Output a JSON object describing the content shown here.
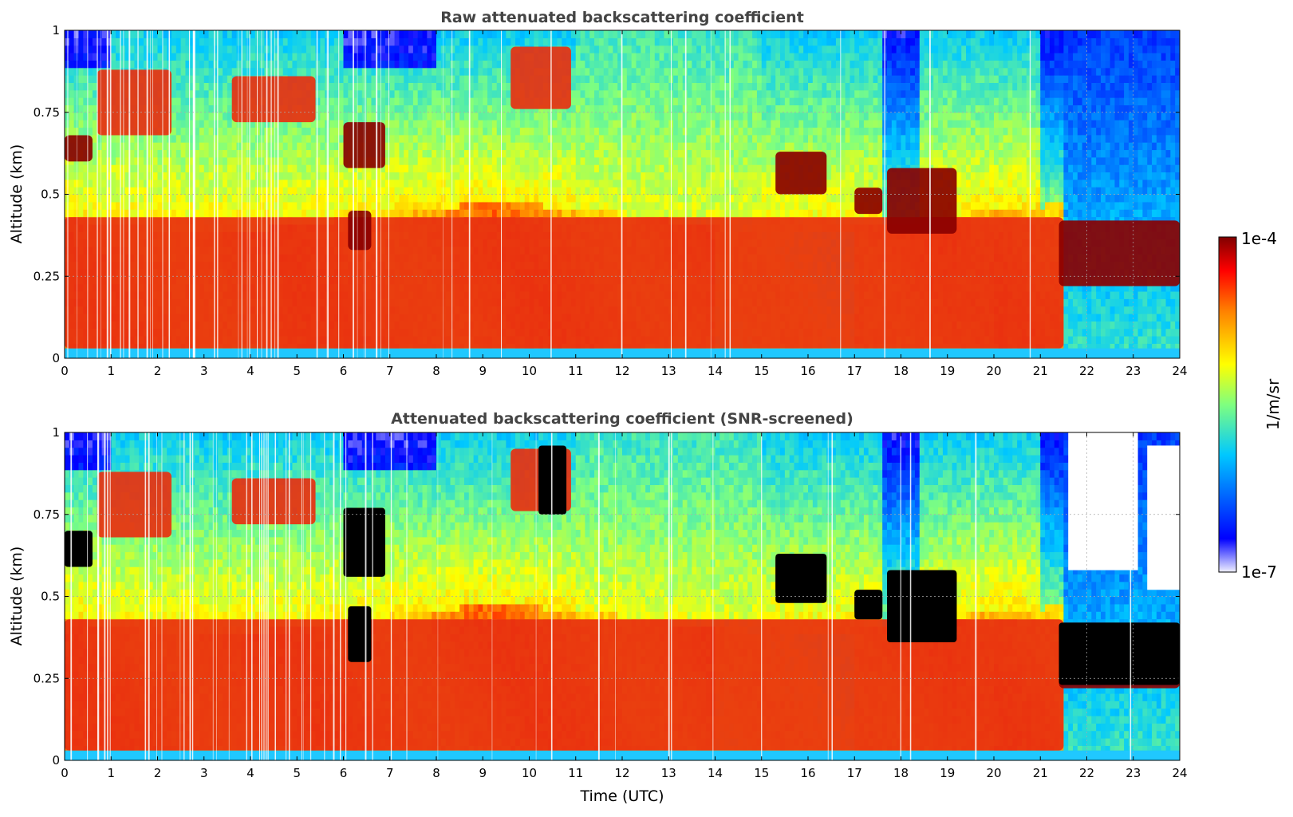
{
  "chart_data": [
    {
      "type": "heatmap",
      "title": "Raw attenuated backscattering coefficient",
      "xlabel": "",
      "ylabel": "Altitude (km)",
      "xlim": [
        0,
        24
      ],
      "ylim": [
        0,
        1
      ],
      "x_ticks": [
        "0",
        "1",
        "2",
        "3",
        "4",
        "5",
        "6",
        "7",
        "8",
        "9",
        "10",
        "11",
        "12",
        "13",
        "14",
        "15",
        "16",
        "17",
        "18",
        "19",
        "20",
        "21",
        "22",
        "23",
        "24"
      ],
      "y_ticks": [
        "0",
        "0.25",
        "0.5",
        "0.75",
        "1"
      ],
      "layers": [
        {
          "name": "aerosol layer",
          "t0": 0,
          "t1": 21.5,
          "alt0": 0.03,
          "alt1": 0.43,
          "level": "high"
        },
        {
          "name": "cloud",
          "t0": 0,
          "t1": 0.6,
          "alt0": 0.6,
          "alt1": 0.68,
          "level": "very high"
        },
        {
          "name": "cloud",
          "t0": 0.7,
          "t1": 2.3,
          "alt0": 0.68,
          "alt1": 0.88,
          "level": "high"
        },
        {
          "name": "cloud",
          "t0": 3.6,
          "t1": 5.4,
          "alt0": 0.72,
          "alt1": 0.86,
          "level": "high"
        },
        {
          "name": "cloud",
          "t0": 6.0,
          "t1": 6.9,
          "alt0": 0.58,
          "alt1": 0.72,
          "level": "very high"
        },
        {
          "name": "cloud",
          "t0": 6.1,
          "t1": 6.6,
          "alt0": 0.33,
          "alt1": 0.45,
          "level": "very high"
        },
        {
          "name": "cloud",
          "t0": 9.6,
          "t1": 10.9,
          "alt0": 0.76,
          "alt1": 0.95,
          "level": "high"
        },
        {
          "name": "cloud",
          "t0": 15.3,
          "t1": 16.4,
          "alt0": 0.5,
          "alt1": 0.63,
          "level": "very high"
        },
        {
          "name": "cloud",
          "t0": 17.0,
          "t1": 17.6,
          "alt0": 0.44,
          "alt1": 0.52,
          "level": "very high"
        },
        {
          "name": "cloud",
          "t0": 17.7,
          "t1": 19.2,
          "alt0": 0.38,
          "alt1": 0.58,
          "level": "very high"
        },
        {
          "name": "cloud",
          "t0": 21.4,
          "t1": 24.0,
          "alt0": 0.22,
          "alt1": 0.42,
          "level": "very high"
        }
      ]
    },
    {
      "type": "heatmap",
      "title": "Attenuated backscattering coefficient (SNR-screened)",
      "xlabel": "Time (UTC)",
      "ylabel": "Altitude (km)",
      "xlim": [
        0,
        24
      ],
      "ylim": [
        0,
        1
      ],
      "x_ticks": [
        "0",
        "1",
        "2",
        "3",
        "4",
        "5",
        "6",
        "7",
        "8",
        "9",
        "10",
        "11",
        "12",
        "13",
        "14",
        "15",
        "16",
        "17",
        "18",
        "19",
        "20",
        "21",
        "22",
        "23",
        "24"
      ],
      "y_ticks": [
        "0",
        "0.25",
        "0.5",
        "0.75",
        "1"
      ],
      "screened_regions": [
        {
          "t0": 0,
          "t1": 0.6,
          "alt0": 0.59,
          "alt1": 0.7
        },
        {
          "t0": 6.0,
          "t1": 6.9,
          "alt0": 0.56,
          "alt1": 0.77
        },
        {
          "t0": 6.1,
          "t1": 6.6,
          "alt0": 0.3,
          "alt1": 0.47
        },
        {
          "t0": 10.2,
          "t1": 10.8,
          "alt0": 0.75,
          "alt1": 0.96
        },
        {
          "t0": 15.3,
          "t1": 16.4,
          "alt0": 0.48,
          "alt1": 0.63
        },
        {
          "t0": 17.0,
          "t1": 17.6,
          "alt0": 0.43,
          "alt1": 0.52
        },
        {
          "t0": 17.7,
          "t1": 19.2,
          "alt0": 0.36,
          "alt1": 0.58
        },
        {
          "t0": 21.4,
          "t1": 24.0,
          "alt0": 0.23,
          "alt1": 0.42
        }
      ]
    }
  ],
  "colorbar": {
    "max_label": "1e-4",
    "min_label": "1e-7",
    "unit_label": "1/m/sr",
    "colormap": [
      "#f0f0ff",
      "#0000ff",
      "#00c8ff",
      "#7fff7f",
      "#ffff00",
      "#ff8000",
      "#ff0000",
      "#800000"
    ]
  }
}
